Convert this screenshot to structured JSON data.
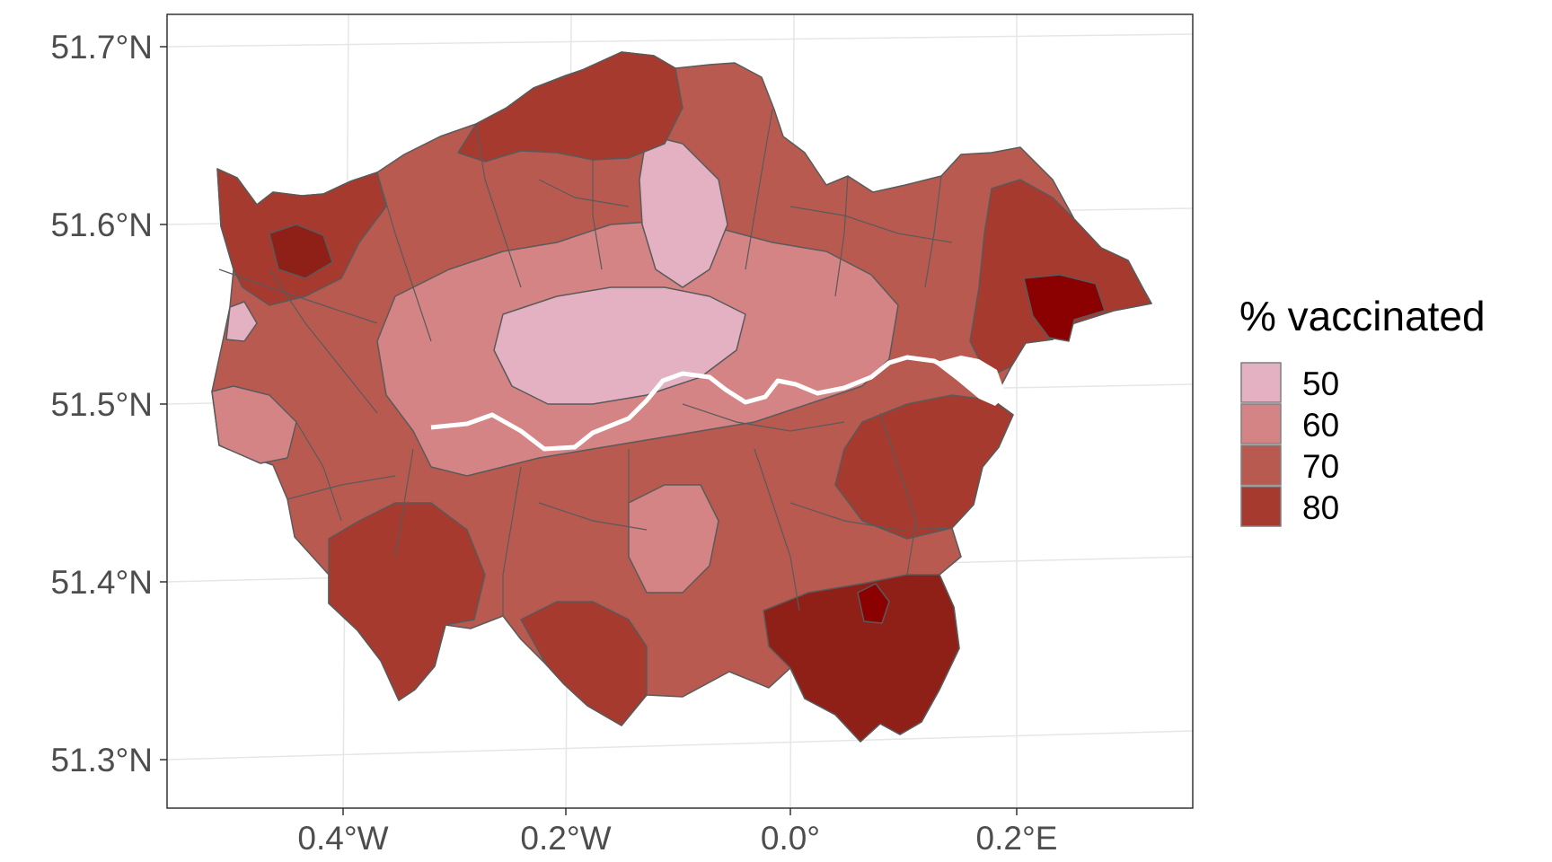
{
  "map": {
    "legend": {
      "title": "% vaccinated",
      "items": [
        {
          "label": "50",
          "color": "#e3b1c2"
        },
        {
          "label": "60",
          "color": "#d48484"
        },
        {
          "label": "70",
          "color": "#b95a50"
        },
        {
          "label": "80",
          "color": "#a63a2f"
        }
      ]
    },
    "axes": {
      "x_ticks": [
        "0.4°W",
        "0.2°W",
        "0.0°",
        "0.2°E"
      ],
      "y_ticks": [
        "51.7°N",
        "51.6°N",
        "51.5°N",
        "51.4°N",
        "51.3°N"
      ]
    },
    "colors": {
      "border": "#5a5a5a",
      "river": "#ffffff",
      "darkest": "#8b0000",
      "panel_border": "#333333",
      "grid": "#e6e6e6"
    }
  }
}
